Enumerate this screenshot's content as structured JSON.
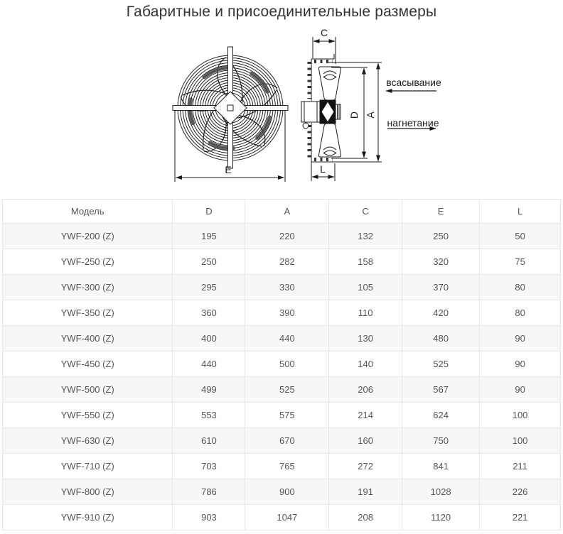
{
  "title": "Габаритные и присоединительные размеры",
  "diagram": {
    "dim_c": "C",
    "dim_d": "D",
    "dim_a": "A",
    "dim_e": "E",
    "dim_l": "L",
    "suction_label": "всасывание",
    "discharge_label": "нагнетание"
  },
  "table": {
    "columns": [
      "Модель",
      "D",
      "A",
      "C",
      "E",
      "L"
    ],
    "rows": [
      [
        "YWF-200 (Z)",
        "195",
        "220",
        "132",
        "250",
        "50"
      ],
      [
        "YWF-250 (Z)",
        "250",
        "282",
        "158",
        "320",
        "75"
      ],
      [
        "YWF-300 (Z)",
        "295",
        "330",
        "105",
        "370",
        "80"
      ],
      [
        "YWF-350 (Z)",
        "360",
        "390",
        "110",
        "420",
        "80"
      ],
      [
        "YWF-400 (Z)",
        "400",
        "440",
        "130",
        "480",
        "90"
      ],
      [
        "YWF-450 (Z)",
        "440",
        "500",
        "140",
        "525",
        "90"
      ],
      [
        "YWF-500 (Z)",
        "499",
        "525",
        "206",
        "567",
        "90"
      ],
      [
        "YWF-550 (Z)",
        "553",
        "575",
        "214",
        "624",
        "100"
      ],
      [
        "YWF-630 (Z)",
        "610",
        "670",
        "160",
        "750",
        "100"
      ],
      [
        "YWF-710 (Z)",
        "703",
        "765",
        "272",
        "841",
        "211"
      ],
      [
        "YWF-800 (Z)",
        "786",
        "900",
        "191",
        "1028",
        "226"
      ],
      [
        "YWF-910 (Z)",
        "903",
        "1047",
        "208",
        "1120",
        "221"
      ]
    ]
  },
  "colors": {
    "title_text": "#333333",
    "table_text": "#555555",
    "table_border": "#e7e7e7",
    "row_stripe": "#f7f7f7",
    "line": "#1a1a1a"
  }
}
